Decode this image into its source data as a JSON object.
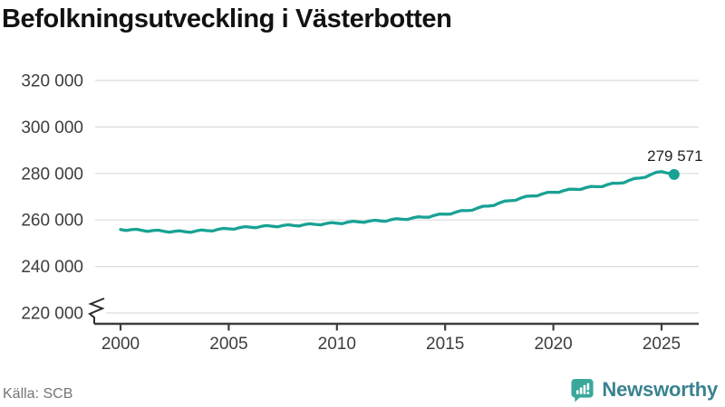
{
  "title": "Befolkningsutveckling i Västerbotten",
  "source": "Källa: SCB",
  "branding": {
    "name": "Newsworthy",
    "icon": "bar-chart-speech-bubble-icon",
    "icon_color": "#3aa79b",
    "text_color": "#3a8290"
  },
  "colors": {
    "line": "#18a294",
    "grid": "#dcdcdc",
    "axis": "#3d3d3d",
    "tick_label": "#3d3d3d",
    "title": "#121212",
    "source": "#767676",
    "end_label": "#1e1e1e",
    "background": "#ffffff"
  },
  "chart_data": {
    "type": "line",
    "title": "Befolkningsutveckling i Västerbotten",
    "xlabel": "",
    "ylabel": "",
    "grid": "horizontal",
    "legend": "none",
    "x_axis": {
      "tick_values": [
        2000,
        2005,
        2010,
        2015,
        2020,
        2025
      ],
      "tick_labels": [
        "2000",
        "2005",
        "2010",
        "2015",
        "2020",
        "2025"
      ],
      "range": [
        1998.6,
        2026.7
      ]
    },
    "y_axis": {
      "tick_values": [
        320000,
        300000,
        280000,
        260000,
        240000,
        220000
      ],
      "tick_labels": [
        "320 000",
        "300 000",
        "280 000",
        "260 000",
        "240 000",
        "220 000"
      ],
      "range_shown": [
        220000,
        320000
      ],
      "axis_break_below": true
    },
    "series": [
      {
        "name": "Folkmängd i Västerbotten",
        "end_point_label": "279 571",
        "end_value": 279571,
        "marker": "end-dot",
        "points": [
          [
            2000,
            255900
          ],
          [
            2000.25,
            255450
          ],
          [
            2000.5,
            255850
          ],
          [
            2000.75,
            256000
          ],
          [
            2001,
            255500
          ],
          [
            2001.25,
            255050
          ],
          [
            2001.5,
            255450
          ],
          [
            2001.75,
            255600
          ],
          [
            2002,
            255100
          ],
          [
            2002.25,
            254700
          ],
          [
            2002.5,
            255150
          ],
          [
            2002.75,
            255350
          ],
          [
            2003,
            254900
          ],
          [
            2003.25,
            254680
          ],
          [
            2003.5,
            255300
          ],
          [
            2003.75,
            255680
          ],
          [
            2004,
            255400
          ],
          [
            2004.25,
            255250
          ],
          [
            2004.5,
            255950
          ],
          [
            2004.75,
            256400
          ],
          [
            2005,
            256200
          ],
          [
            2005.25,
            256030
          ],
          [
            2005.5,
            256700
          ],
          [
            2005.75,
            257130
          ],
          [
            2006,
            256900
          ],
          [
            2006.25,
            256650
          ],
          [
            2006.5,
            257250
          ],
          [
            2006.75,
            257600
          ],
          [
            2007,
            257300
          ],
          [
            2007.25,
            257030
          ],
          [
            2007.5,
            257600
          ],
          [
            2007.75,
            257930
          ],
          [
            2008,
            257600
          ],
          [
            2008.25,
            257380
          ],
          [
            2008.5,
            258000
          ],
          [
            2008.75,
            258380
          ],
          [
            2009,
            258100
          ],
          [
            2009.25,
            257880
          ],
          [
            2009.5,
            258500
          ],
          [
            2009.75,
            258880
          ],
          [
            2010,
            258600
          ],
          [
            2010.25,
            258400
          ],
          [
            2010.5,
            259050
          ],
          [
            2010.75,
            259450
          ],
          [
            2011,
            259200
          ],
          [
            2011.25,
            258950
          ],
          [
            2011.5,
            259550
          ],
          [
            2011.75,
            259900
          ],
          [
            2012,
            259600
          ],
          [
            2012.25,
            259430
          ],
          [
            2012.5,
            260100
          ],
          [
            2012.75,
            260530
          ],
          [
            2013,
            260300
          ],
          [
            2013.25,
            260180
          ],
          [
            2013.5,
            260900
          ],
          [
            2013.75,
            261380
          ],
          [
            2014,
            261200
          ],
          [
            2014.25,
            261180
          ],
          [
            2014.5,
            262000
          ],
          [
            2014.75,
            262580
          ],
          [
            2015,
            262500
          ],
          [
            2015.25,
            262530
          ],
          [
            2015.5,
            263400
          ],
          [
            2015.75,
            264030
          ],
          [
            2016,
            264000
          ],
          [
            2016.25,
            264150
          ],
          [
            2016.5,
            265150
          ],
          [
            2016.75,
            265900
          ],
          [
            2017,
            266000
          ],
          [
            2017.25,
            266230
          ],
          [
            2017.5,
            267300
          ],
          [
            2017.75,
            268130
          ],
          [
            2018,
            268300
          ],
          [
            2018.25,
            268450
          ],
          [
            2018.5,
            269450
          ],
          [
            2018.75,
            270200
          ],
          [
            2019,
            270300
          ],
          [
            2019.25,
            270350
          ],
          [
            2019.5,
            271250
          ],
          [
            2019.75,
            271900
          ],
          [
            2020,
            271900
          ],
          [
            2020.25,
            271880
          ],
          [
            2020.5,
            272700
          ],
          [
            2020.75,
            273280
          ],
          [
            2021,
            273200
          ],
          [
            2021.25,
            273130
          ],
          [
            2021.5,
            273900
          ],
          [
            2021.75,
            274430
          ],
          [
            2022,
            274300
          ],
          [
            2022.25,
            274330
          ],
          [
            2022.5,
            275200
          ],
          [
            2022.75,
            275830
          ],
          [
            2023,
            275800
          ],
          [
            2023.25,
            276000
          ],
          [
            2023.5,
            277050
          ],
          [
            2023.75,
            277850
          ],
          [
            2024,
            278000
          ],
          [
            2024.25,
            278350
          ],
          [
            2024.5,
            279550
          ],
          [
            2024.75,
            280500
          ],
          [
            2025,
            280800
          ],
          [
            2025.25,
            280200
          ],
          [
            2025.58,
            279571
          ]
        ]
      }
    ]
  }
}
